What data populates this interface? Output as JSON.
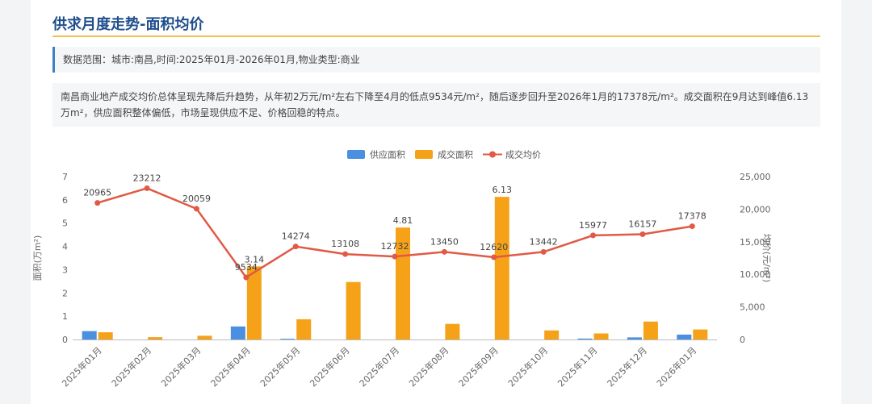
{
  "page": {
    "title": "供求月度走势-面积均价",
    "scope": "数据范围：城市:南昌,时间:2025年01月-2026年01月,物业类型:商业",
    "summary": "南昌商业地产成交均价总体呈现先降后升趋势，从年初2万元/m²左右下降至4月的低点9534元/m²，随后逐步回升至2026年1月的17378元/m²。成交面积在9月达到峰值6.13万m²，供应面积整体偏低，市场呈现供应不足、价格回稳的特点。"
  },
  "chart_data": {
    "type": "bar+line",
    "categories": [
      "2025年01月",
      "2025年02月",
      "2025年03月",
      "2025年04月",
      "2025年05月",
      "2025年06月",
      "2025年07月",
      "2025年08月",
      "2025年09月",
      "2025年10月",
      "2025年11月",
      "2025年12月",
      "2026年01月"
    ],
    "series": [
      {
        "name": "供应面积",
        "type": "bar",
        "axis": "left",
        "color": "#4a8fe0",
        "values": [
          0.36,
          0,
          0,
          0.56,
          0.03,
          0,
          0,
          0,
          0,
          0,
          0.04,
          0.09,
          0.21
        ]
      },
      {
        "name": "成交面积",
        "type": "bar",
        "axis": "left",
        "color": "#f5a218",
        "values": [
          0.31,
          0.1,
          0.16,
          3.14,
          0.87,
          2.47,
          4.81,
          0.67,
          6.13,
          0.39,
          0.26,
          0.77,
          0.43
        ],
        "labels": {
          "3": "3.14",
          "6": "4.81",
          "8": "6.13"
        }
      },
      {
        "name": "成交均价",
        "type": "line",
        "axis": "right",
        "color": "#e05a45",
        "values": [
          20965,
          23212,
          20059,
          9534,
          14274,
          13108,
          12732,
          13450,
          12620,
          13442,
          15977,
          16157,
          17378
        ]
      }
    ],
    "y_left": {
      "min": 0,
      "max": 7,
      "ticks": [
        "0",
        "1",
        "2",
        "3",
        "4",
        "5",
        "6",
        "7"
      ],
      "label": "面积(万m²)"
    },
    "y_right": {
      "min": 0,
      "max": 25000,
      "ticks": [
        "0",
        "5,000",
        "10,000",
        "15,000",
        "20,000",
        "25,000"
      ],
      "label": "均价(元/m²)"
    },
    "legend_position": "top-center",
    "grid": false
  }
}
